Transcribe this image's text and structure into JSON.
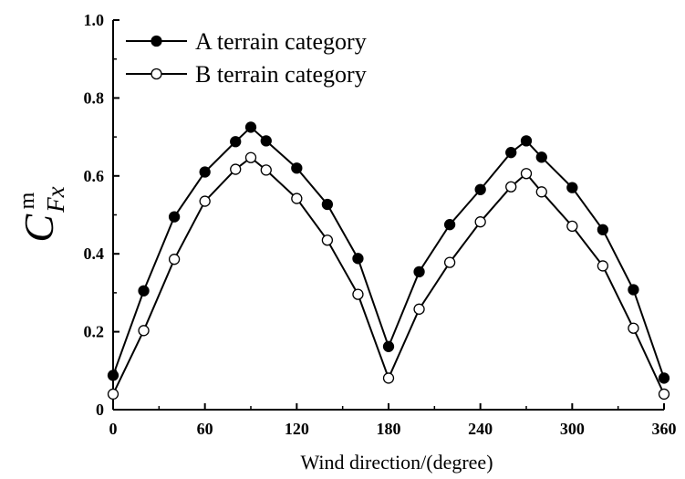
{
  "chart_data": {
    "type": "line",
    "title": "",
    "xlabel": "Wind direction/(degree)",
    "ylabel": {
      "main": "C",
      "subscript": "Fx",
      "superscript": "m"
    },
    "xlim": [
      0,
      360
    ],
    "ylim": [
      0,
      1.0
    ],
    "xticks": [
      0,
      60,
      120,
      180,
      240,
      300,
      360
    ],
    "yticks": [
      0,
      0.2,
      0.4,
      0.6,
      0.8,
      1.0
    ],
    "xtick_labels": [
      "0",
      "60",
      "120",
      "180",
      "240",
      "300",
      "360"
    ],
    "ytick_labels": [
      "0",
      "0.2",
      "0.4",
      "0.6",
      "0.8",
      "1.0"
    ],
    "grid": false,
    "legend_position": "top-left",
    "x": [
      0,
      20,
      40,
      60,
      80,
      90,
      100,
      120,
      140,
      160,
      180,
      200,
      220,
      240,
      260,
      270,
      280,
      300,
      320,
      340,
      360
    ],
    "series": [
      {
        "name": "A terrain category",
        "marker": "filled-circle",
        "color": "#000000",
        "values": [
          0.088,
          0.305,
          0.495,
          0.61,
          0.688,
          0.725,
          0.69,
          0.62,
          0.527,
          0.388,
          0.162,
          0.354,
          0.475,
          0.565,
          0.66,
          0.69,
          0.648,
          0.57,
          0.462,
          0.308,
          0.081
        ]
      },
      {
        "name": "B terrain category",
        "marker": "open-circle",
        "color": "#000000",
        "values": [
          0.04,
          0.203,
          0.386,
          0.535,
          0.617,
          0.647,
          0.615,
          0.542,
          0.435,
          0.296,
          0.081,
          0.258,
          0.378,
          0.482,
          0.572,
          0.606,
          0.559,
          0.471,
          0.369,
          0.209,
          0.04
        ]
      }
    ]
  }
}
